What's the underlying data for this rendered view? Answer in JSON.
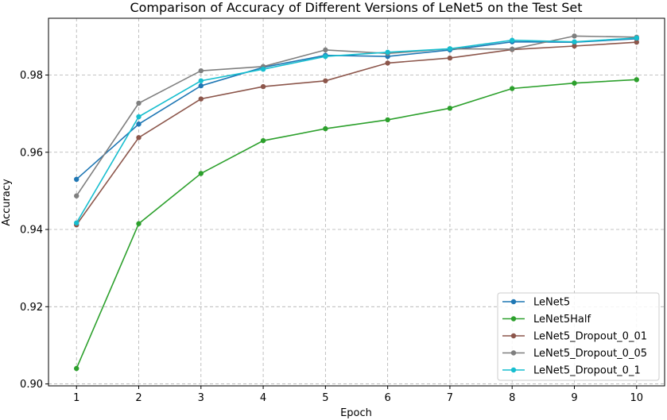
{
  "chart_data": {
    "type": "line",
    "title": "Comparison of Accuracy of Different Versions of LeNet5 on the Test Set",
    "xlabel": "Epoch",
    "ylabel": "Accuracy",
    "x": [
      1,
      2,
      3,
      4,
      5,
      6,
      7,
      8,
      9,
      10
    ],
    "xlim": [
      0.55,
      10.45
    ],
    "ylim": [
      0.8995,
      0.9947
    ],
    "x_ticks": [
      "1",
      "2",
      "3",
      "4",
      "5",
      "6",
      "7",
      "8",
      "9",
      "10"
    ],
    "y_ticks": [
      {
        "value": 0.9,
        "label": "0.90"
      },
      {
        "value": 0.92,
        "label": "0.92"
      },
      {
        "value": 0.94,
        "label": "0.94"
      },
      {
        "value": 0.96,
        "label": "0.96"
      },
      {
        "value": 0.98,
        "label": "0.98"
      }
    ],
    "grid": true,
    "legend_position": "bottom-right",
    "series": [
      {
        "name": "LeNet5",
        "color": "#1f77b4",
        "values": [
          0.953,
          0.9673,
          0.9772,
          0.982,
          0.9851,
          0.9848,
          0.9865,
          0.9886,
          0.9885,
          0.9894
        ]
      },
      {
        "name": "LeNet5Half",
        "color": "#2ca02c",
        "values": [
          0.904,
          0.9415,
          0.9545,
          0.963,
          0.9661,
          0.9684,
          0.9714,
          0.9765,
          0.9779,
          0.9788
        ]
      },
      {
        "name": "LeNet5_Dropout_0_01",
        "color": "#8c564b",
        "values": [
          0.9412,
          0.9638,
          0.9738,
          0.977,
          0.9785,
          0.9831,
          0.9844,
          0.9866,
          0.9875,
          0.9885
        ]
      },
      {
        "name": "LeNet5_Dropout_0_05",
        "color": "#7f7f7f",
        "values": [
          0.9487,
          0.9727,
          0.9811,
          0.9822,
          0.9865,
          0.9856,
          0.9868,
          0.9867,
          0.9901,
          0.9898
        ]
      },
      {
        "name": "LeNet5_Dropout_0_1",
        "color": "#17becf",
        "values": [
          0.9417,
          0.9692,
          0.9785,
          0.9815,
          0.9848,
          0.9859,
          0.9868,
          0.989,
          0.9886,
          0.9896
        ]
      }
    ]
  }
}
